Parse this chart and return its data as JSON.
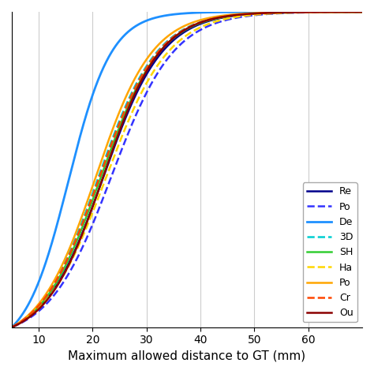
{
  "title": "",
  "xlabel": "Maximum allowed distance to GT (mm)",
  "ylabel": "",
  "xlim": [
    5,
    70
  ],
  "ylim": [
    0,
    1.0
  ],
  "x_ticks": [
    10,
    20,
    30,
    40,
    50,
    60
  ],
  "series": [
    {
      "label": "Re",
      "color": "#00008B",
      "linestyle": "solid",
      "linewidth": 1.8,
      "params": [
        22.0,
        5.5
      ]
    },
    {
      "label": "Po",
      "color": "#3333FF",
      "linestyle": "dashed",
      "linewidth": 1.8,
      "params": [
        23.5,
        5.8
      ]
    },
    {
      "label": "De",
      "color": "#1E90FF",
      "linestyle": "solid",
      "linewidth": 2.0,
      "params": [
        15.5,
        4.0
      ]
    },
    {
      "label": "3D",
      "color": "#00CED1",
      "linestyle": "dashed",
      "linewidth": 1.8,
      "params": [
        21.0,
        5.5
      ]
    },
    {
      "label": "SH",
      "color": "#32CD32",
      "linestyle": "solid",
      "linewidth": 1.8,
      "params": [
        21.5,
        5.5
      ]
    },
    {
      "label": "Ha",
      "color": "#FFD700",
      "linestyle": "dashed",
      "linewidth": 1.8,
      "params": [
        22.5,
        5.8
      ]
    },
    {
      "label": "Po",
      "color": "#FFA500",
      "linestyle": "solid",
      "linewidth": 1.8,
      "params": [
        20.5,
        5.3
      ]
    },
    {
      "label": "Cr",
      "color": "#FF4500",
      "linestyle": "dashed",
      "linewidth": 1.8,
      "params": [
        21.2,
        5.5
      ]
    },
    {
      "label": "Ou",
      "color": "#8B0000",
      "linestyle": "solid",
      "linewidth": 1.8,
      "params": [
        22.0,
        5.3
      ]
    }
  ],
  "legend_loc": "lower right",
  "background_color": "#ffffff",
  "grid_color": "#cccccc"
}
